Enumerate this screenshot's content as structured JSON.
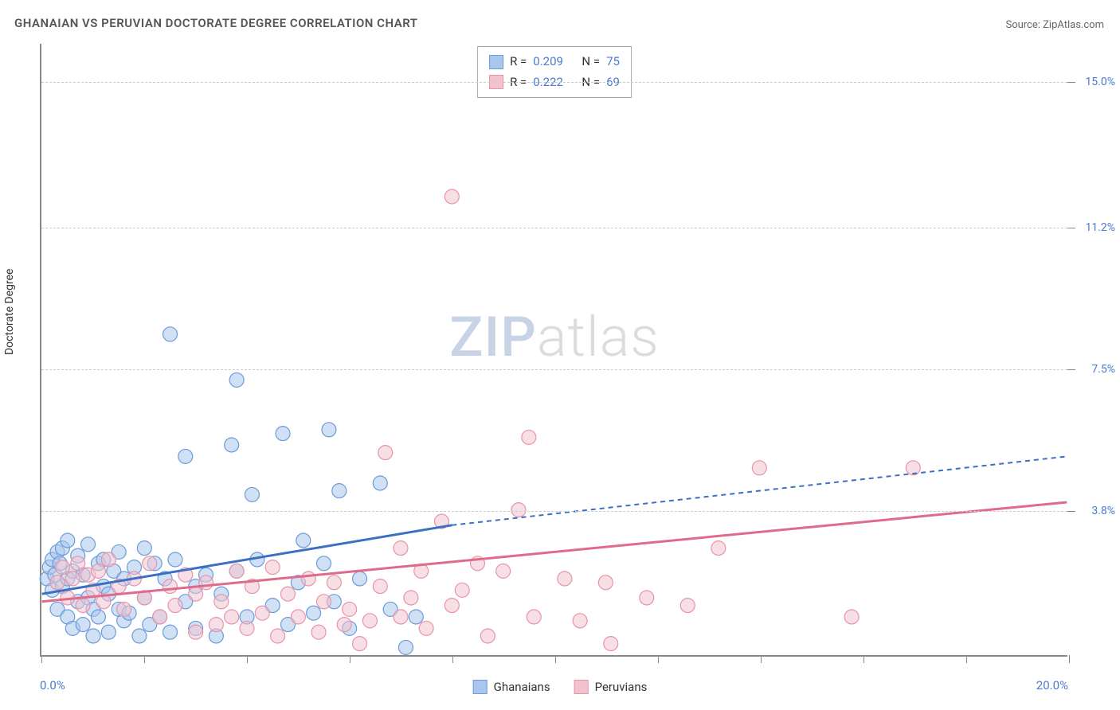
{
  "title": "GHANAIAN VS PERUVIAN DOCTORATE DEGREE CORRELATION CHART",
  "source_prefix": "Source: ",
  "source_link": "ZipAtlas.com",
  "y_axis_title": "Doctorate Degree",
  "watermark_bold": "ZIP",
  "watermark_light": "atlas",
  "chart": {
    "type": "scatter",
    "xlim": [
      0,
      20
    ],
    "ylim": [
      0,
      16
    ],
    "x_label_min": "0.0%",
    "x_label_max": "20.0%",
    "y_grid": [
      {
        "v": 3.8,
        "label": "3.8%"
      },
      {
        "v": 7.5,
        "label": "7.5%"
      },
      {
        "v": 11.2,
        "label": "11.2%"
      },
      {
        "v": 15.0,
        "label": "15.0%"
      }
    ],
    "x_ticks": [
      0,
      2,
      4,
      6,
      8,
      10,
      12,
      14,
      16,
      18,
      20
    ],
    "background_color": "#ffffff",
    "grid_color": "#cccccc",
    "marker_radius": 9,
    "marker_opacity": 0.55,
    "series": [
      {
        "name": "Ghanaians",
        "color_fill": "#a9c6ec",
        "color_stroke": "#6b9bd8",
        "line_color": "#3b6fc4",
        "R": "0.209",
        "N": "75",
        "trend": {
          "x1": 0,
          "y1": 1.6,
          "x2_solid": 8,
          "y2_solid": 3.4,
          "x2": 20,
          "y2": 5.2
        },
        "points": [
          [
            0.1,
            2.0
          ],
          [
            0.15,
            2.3
          ],
          [
            0.2,
            1.7
          ],
          [
            0.2,
            2.5
          ],
          [
            0.25,
            2.1
          ],
          [
            0.3,
            1.2
          ],
          [
            0.3,
            2.7
          ],
          [
            0.35,
            2.4
          ],
          [
            0.4,
            2.8
          ],
          [
            0.4,
            1.8
          ],
          [
            0.5,
            2.0
          ],
          [
            0.5,
            1.0
          ],
          [
            0.5,
            3.0
          ],
          [
            0.6,
            2.2
          ],
          [
            0.6,
            0.7
          ],
          [
            0.7,
            2.6
          ],
          [
            0.7,
            1.4
          ],
          [
            0.8,
            0.8
          ],
          [
            0.8,
            2.1
          ],
          [
            0.9,
            1.5
          ],
          [
            0.9,
            2.9
          ],
          [
            1.0,
            1.2
          ],
          [
            1.0,
            0.5
          ],
          [
            1.1,
            2.4
          ],
          [
            1.1,
            1.0
          ],
          [
            1.2,
            1.8
          ],
          [
            1.2,
            2.5
          ],
          [
            1.3,
            0.6
          ],
          [
            1.3,
            1.6
          ],
          [
            1.4,
            2.2
          ],
          [
            1.5,
            1.2
          ],
          [
            1.5,
            2.7
          ],
          [
            1.6,
            0.9
          ],
          [
            1.6,
            2.0
          ],
          [
            1.7,
            1.1
          ],
          [
            1.8,
            2.3
          ],
          [
            1.9,
            0.5
          ],
          [
            2.0,
            1.5
          ],
          [
            2.0,
            2.8
          ],
          [
            2.1,
            0.8
          ],
          [
            2.2,
            2.4
          ],
          [
            2.3,
            1.0
          ],
          [
            2.4,
            2.0
          ],
          [
            2.5,
            0.6
          ],
          [
            2.5,
            8.4
          ],
          [
            2.6,
            2.5
          ],
          [
            2.8,
            1.4
          ],
          [
            2.8,
            5.2
          ],
          [
            3.0,
            1.8
          ],
          [
            3.0,
            0.7
          ],
          [
            3.2,
            2.1
          ],
          [
            3.4,
            0.5
          ],
          [
            3.5,
            1.6
          ],
          [
            3.7,
            5.5
          ],
          [
            3.8,
            2.2
          ],
          [
            3.8,
            7.2
          ],
          [
            4.0,
            1.0
          ],
          [
            4.1,
            4.2
          ],
          [
            4.2,
            2.5
          ],
          [
            4.5,
            1.3
          ],
          [
            4.7,
            5.8
          ],
          [
            4.8,
            0.8
          ],
          [
            5.0,
            1.9
          ],
          [
            5.1,
            3.0
          ],
          [
            5.3,
            1.1
          ],
          [
            5.5,
            2.4
          ],
          [
            5.6,
            5.9
          ],
          [
            5.7,
            1.4
          ],
          [
            5.8,
            4.3
          ],
          [
            6.0,
            0.7
          ],
          [
            6.2,
            2.0
          ],
          [
            6.6,
            4.5
          ],
          [
            6.8,
            1.2
          ],
          [
            7.1,
            0.2
          ],
          [
            7.3,
            1.0
          ]
        ]
      },
      {
        "name": "Peruvians",
        "color_fill": "#f3c2cf",
        "color_stroke": "#e694ab",
        "line_color": "#e06a8a",
        "R": "0.222",
        "N": "69",
        "trend": {
          "x1": 0,
          "y1": 1.4,
          "x2_solid": 20,
          "y2_solid": 4.0,
          "x2": 20,
          "y2": 4.0
        },
        "points": [
          [
            0.3,
            1.9
          ],
          [
            0.4,
            2.3
          ],
          [
            0.5,
            1.5
          ],
          [
            0.6,
            2.0
          ],
          [
            0.7,
            2.4
          ],
          [
            0.8,
            1.3
          ],
          [
            0.9,
            2.1
          ],
          [
            1.0,
            1.7
          ],
          [
            1.1,
            2.2
          ],
          [
            1.2,
            1.4
          ],
          [
            1.3,
            2.5
          ],
          [
            1.5,
            1.8
          ],
          [
            1.6,
            1.2
          ],
          [
            1.8,
            2.0
          ],
          [
            2.0,
            1.5
          ],
          [
            2.1,
            2.4
          ],
          [
            2.3,
            1.0
          ],
          [
            2.5,
            1.8
          ],
          [
            2.6,
            1.3
          ],
          [
            2.8,
            2.1
          ],
          [
            3.0,
            1.6
          ],
          [
            3.0,
            0.6
          ],
          [
            3.2,
            1.9
          ],
          [
            3.4,
            0.8
          ],
          [
            3.5,
            1.4
          ],
          [
            3.7,
            1.0
          ],
          [
            3.8,
            2.2
          ],
          [
            4.0,
            0.7
          ],
          [
            4.1,
            1.8
          ],
          [
            4.3,
            1.1
          ],
          [
            4.5,
            2.3
          ],
          [
            4.6,
            0.5
          ],
          [
            4.8,
            1.6
          ],
          [
            5.0,
            1.0
          ],
          [
            5.2,
            2.0
          ],
          [
            5.4,
            0.6
          ],
          [
            5.5,
            1.4
          ],
          [
            5.7,
            1.9
          ],
          [
            5.9,
            0.8
          ],
          [
            6.0,
            1.2
          ],
          [
            6.4,
            0.9
          ],
          [
            6.6,
            1.8
          ],
          [
            6.7,
            5.3
          ],
          [
            7.0,
            1.0
          ],
          [
            7.2,
            1.5
          ],
          [
            7.4,
            2.2
          ],
          [
            7.5,
            0.7
          ],
          [
            7.8,
            3.5
          ],
          [
            8.0,
            1.3
          ],
          [
            8.0,
            12.0
          ],
          [
            8.2,
            1.7
          ],
          [
            8.5,
            2.4
          ],
          [
            8.7,
            0.5
          ],
          [
            9.0,
            2.2
          ],
          [
            9.3,
            3.8
          ],
          [
            9.5,
            5.7
          ],
          [
            9.6,
            1.0
          ],
          [
            10.2,
            2.0
          ],
          [
            10.5,
            0.9
          ],
          [
            11.0,
            1.9
          ],
          [
            11.1,
            0.3
          ],
          [
            11.8,
            1.5
          ],
          [
            12.6,
            1.3
          ],
          [
            13.2,
            2.8
          ],
          [
            15.8,
            1.0
          ],
          [
            17.0,
            4.9
          ],
          [
            14.0,
            4.9
          ],
          [
            7.0,
            2.8
          ],
          [
            6.2,
            0.3
          ]
        ]
      }
    ]
  },
  "legend_r_label": "R =",
  "legend_n_label": "N ="
}
